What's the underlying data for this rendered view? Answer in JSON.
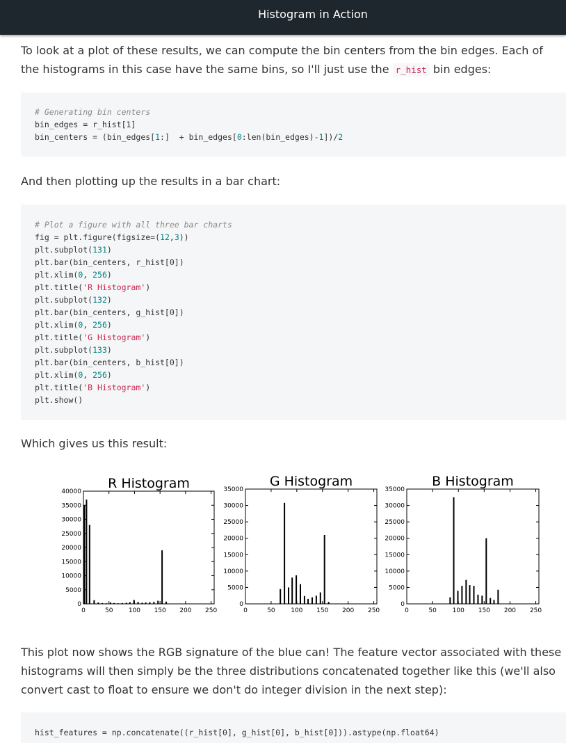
{
  "header": {
    "title": "Histogram in Action"
  },
  "para1": {
    "before": "To look at a plot of these results, we can compute the bin centers from the bin edges. Each of the histograms in this case have the same bins, so I'll just use the ",
    "code": "r_hist",
    "after": " bin edges:"
  },
  "code1": {
    "comment": "# Generating bin centers",
    "line2": "bin_edges = r_hist[1]",
    "line3_a": "bin_centers = (bin_edges[",
    "line3_num1": "1",
    "line3_b": ":]  + bin_edges[",
    "line3_num2": "0",
    "line3_c": ":len(bin_edges)-",
    "line3_num3": "1",
    "line3_d": "])/",
    "line3_num4": "2"
  },
  "para2": "And then plotting up the results in a bar chart:",
  "code2": {
    "comment": "# Plot a figure with all three bar charts",
    "l1_a": "fig = plt.figure(figsize=(",
    "l1_n1": "12",
    "l1_b": ",",
    "l1_n2": "3",
    "l1_c": "))",
    "l2_a": "plt.subplot(",
    "l2_n": "131",
    "l2_b": ")",
    "l3": "plt.bar(bin_centers, r_hist[0])",
    "l4_a": "plt.xlim(",
    "l4_n1": "0",
    "l4_b": ", ",
    "l4_n2": "256",
    "l4_c": ")",
    "l5_a": "plt.title(",
    "l5_s": "'R Histogram'",
    "l5_b": ")",
    "l6_a": "plt.subplot(",
    "l6_n": "132",
    "l6_b": ")",
    "l7": "plt.bar(bin_centers, g_hist[0])",
    "l8_a": "plt.xlim(",
    "l8_n1": "0",
    "l8_b": ", ",
    "l8_n2": "256",
    "l8_c": ")",
    "l9_a": "plt.title(",
    "l9_s": "'G Histogram'",
    "l9_b": ")",
    "l10_a": "plt.subplot(",
    "l10_n": "133",
    "l10_b": ")",
    "l11": "plt.bar(bin_centers, b_hist[0])",
    "l12_a": "plt.xlim(",
    "l12_n1": "0",
    "l12_b": ", ",
    "l12_n2": "256",
    "l12_c": ")",
    "l13_a": "plt.title(",
    "l13_s": "'B Histogram'",
    "l13_b": ")",
    "l14": "plt.show()"
  },
  "para3": "Which gives us this result:",
  "para4": "This plot now shows the RGB signature of the blue can! The feature vector associated with these histograms will then simply be the three distributions concatenated together like this (we'll also convert cast to float to ensure we don't do integer division in the next step):",
  "code3": {
    "line": "hist_features = np.concatenate((r_hist[0], g_hist[0], b_hist[0])).astype(np.float64)"
  },
  "chart_data": [
    {
      "type": "bar",
      "title": "R Histogram",
      "xlim": [
        0,
        256
      ],
      "ylim": [
        0,
        40000
      ],
      "xticks": [
        0,
        50,
        100,
        150,
        200,
        250
      ],
      "yticks": [
        0,
        5000,
        10000,
        15000,
        20000,
        25000,
        30000,
        35000,
        40000
      ],
      "x": [
        2,
        6,
        12,
        21,
        29,
        37,
        45,
        53,
        60,
        68,
        76,
        84,
        91,
        99,
        107,
        115,
        122,
        130,
        138,
        146,
        154,
        162
      ],
      "values": [
        35000,
        37000,
        28000,
        1300,
        500,
        300,
        200,
        500,
        300,
        200,
        300,
        400,
        600,
        1400,
        700,
        400,
        500,
        600,
        700,
        1100,
        19000,
        800
      ]
    },
    {
      "type": "bar",
      "title": "G Histogram",
      "xlim": [
        0,
        256
      ],
      "ylim": [
        0,
        35000
      ],
      "xticks": [
        0,
        50,
        100,
        150,
        200,
        250
      ],
      "yticks": [
        0,
        5000,
        10000,
        15000,
        20000,
        25000,
        30000,
        35000
      ],
      "x": [
        68,
        76,
        84,
        91,
        99,
        107,
        115,
        122,
        130,
        138,
        146,
        154,
        162
      ],
      "values": [
        4500,
        30800,
        5000,
        8000,
        8700,
        6000,
        2400,
        1500,
        2000,
        2500,
        3500,
        21000,
        600
      ]
    },
    {
      "type": "bar",
      "title": "B Histogram",
      "xlim": [
        0,
        256
      ],
      "ylim": [
        0,
        35000
      ],
      "xticks": [
        0,
        50,
        100,
        150,
        200,
        250
      ],
      "yticks": [
        0,
        5000,
        10000,
        15000,
        20000,
        25000,
        30000,
        35000
      ],
      "x": [
        84,
        91,
        99,
        107,
        115,
        122,
        130,
        138,
        146,
        154,
        162,
        169,
        177
      ],
      "values": [
        2000,
        32500,
        4000,
        5500,
        7300,
        5700,
        5500,
        2800,
        2500,
        20000,
        1800,
        1200,
        4300
      ]
    }
  ]
}
